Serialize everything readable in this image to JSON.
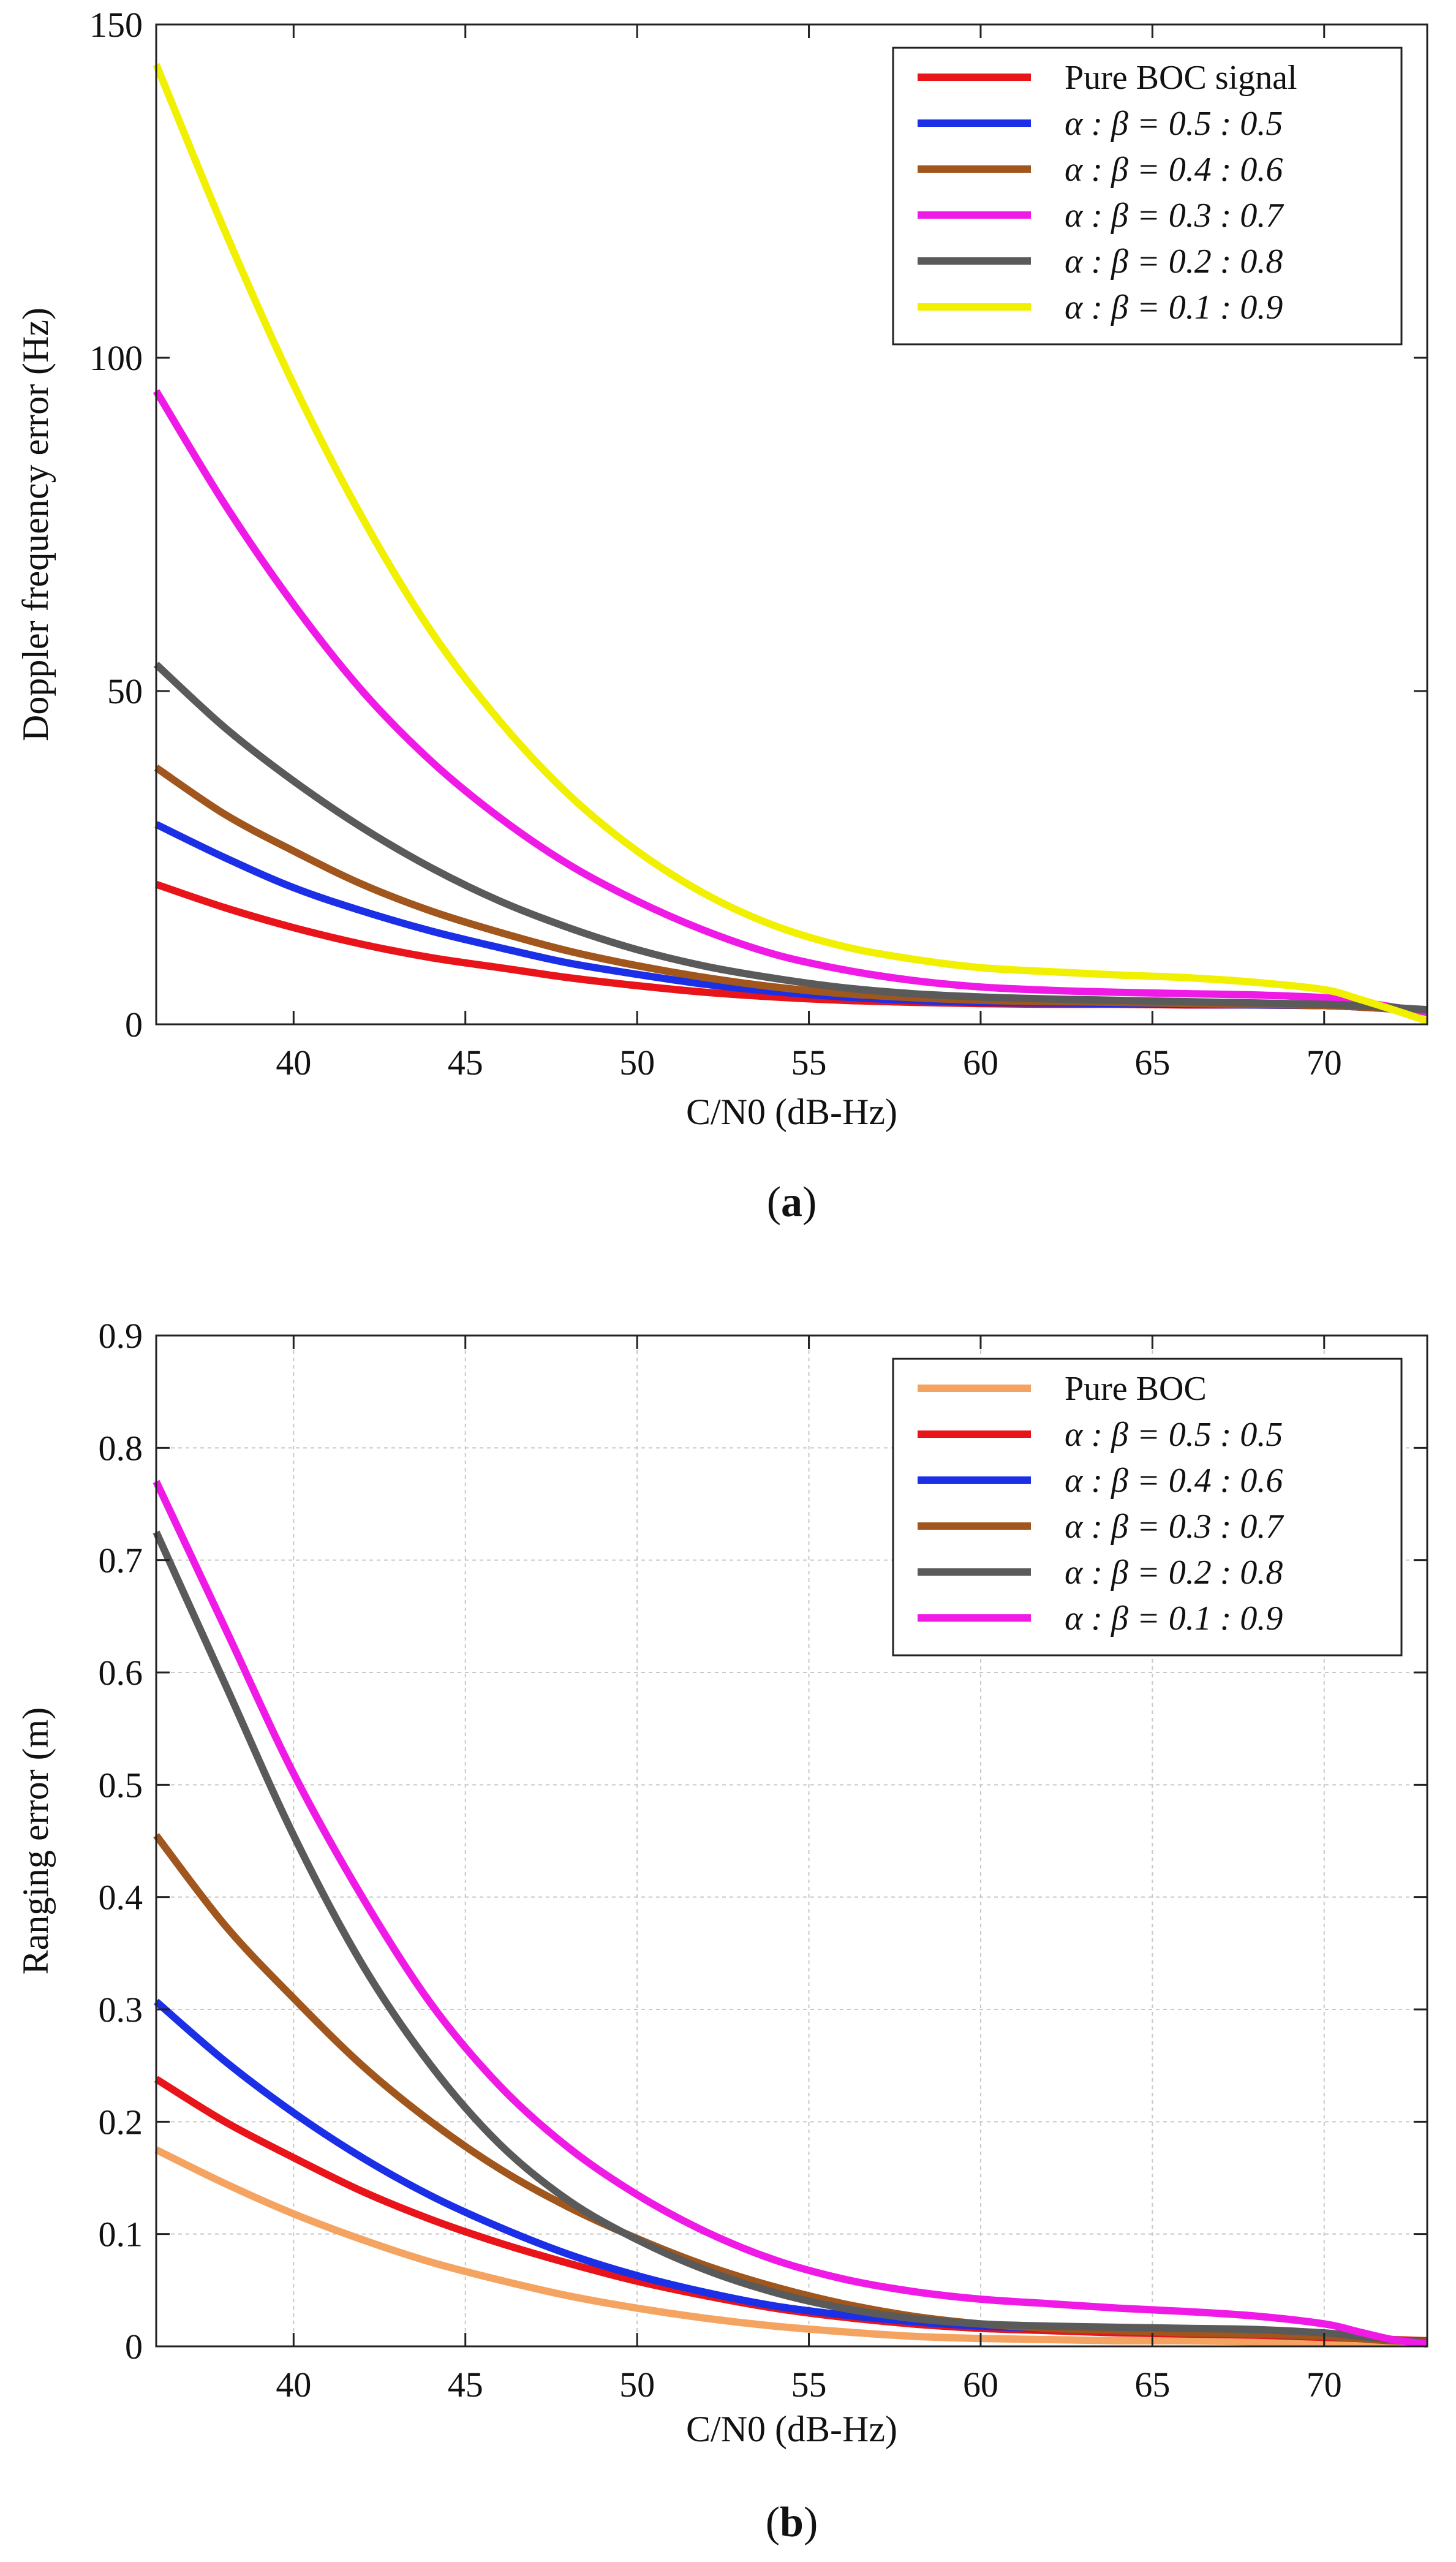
{
  "chart_data": [
    {
      "panel": "(a)",
      "panel_letter": "a",
      "type": "line",
      "xlabel": "C/N0  (dB-Hz)",
      "ylabel": "Doppler frequency error (Hz)",
      "xlim": [
        36,
        73
      ],
      "ylim": [
        0,
        150
      ],
      "xticks": [
        40,
        45,
        50,
        55,
        60,
        65,
        70
      ],
      "yticks": [
        0,
        50,
        100,
        150
      ],
      "grid": false,
      "legend_position": "top-right",
      "x": [
        36,
        38,
        40,
        42,
        44,
        46,
        48,
        50,
        52,
        54,
        56,
        58,
        60,
        62,
        64,
        66,
        68,
        70,
        71,
        72,
        73
      ],
      "series": [
        {
          "name": "Pure BOC signal",
          "color": "#e8141a",
          "values": [
            21,
            17.5,
            14.5,
            12,
            10,
            8.5,
            7,
            5.8,
            4.8,
            4.1,
            3.6,
            3.3,
            3.1,
            3.0,
            3.0,
            2.9,
            2.9,
            2.8,
            2.6,
            2.3,
            1.9
          ]
        },
        {
          "name": "α : β = 0.5 : 0.5",
          "color": "#1b2fe6",
          "values": [
            30,
            25,
            20.5,
            17,
            14,
            11.5,
            9.2,
            7.5,
            6.0,
            4.9,
            4.1,
            3.6,
            3.3,
            3.2,
            3.1,
            3.0,
            2.9,
            2.8,
            2.6,
            2.3,
            1.9
          ]
        },
        {
          "name": "α : β = 0.4 : 0.6",
          "color": "#a0561c",
          "values": [
            38.5,
            31.5,
            26,
            21,
            17,
            13.8,
            11,
            8.8,
            7,
            5.6,
            4.6,
            4.0,
            3.6,
            3.4,
            3.3,
            3.1,
            3.0,
            2.8,
            2.6,
            2.3,
            1.9
          ]
        },
        {
          "name": "α : β = 0.3 : 0.7",
          "color": "#f01ae6",
          "values": [
            95,
            78,
            63,
            50,
            39.5,
            31,
            24,
            18.5,
            14,
            10.5,
            8.2,
            6.6,
            5.6,
            5.1,
            4.8,
            4.6,
            4.4,
            4.0,
            3.4,
            2.6,
            1.8
          ]
        },
        {
          "name": "α : β = 0.2 : 0.8",
          "color": "#5a5a5a",
          "values": [
            54,
            44.5,
            36.5,
            29.5,
            23.5,
            18.5,
            14.5,
            11.2,
            8.7,
            6.9,
            5.5,
            4.6,
            4.1,
            3.8,
            3.6,
            3.4,
            3.2,
            3.0,
            2.8,
            2.5,
            2.2
          ]
        },
        {
          "name": "α : β = 0.1 : 0.9",
          "color": "#f0f000",
          "values": [
            144,
            119,
            96,
            76,
            59,
            45.5,
            34.5,
            26,
            19.5,
            14.8,
            11.7,
            9.8,
            8.5,
            7.9,
            7.4,
            7.0,
            6.3,
            5.2,
            3.8,
            2.2,
            0.5
          ]
        }
      ]
    },
    {
      "panel": "(b)",
      "panel_letter": "b",
      "type": "line",
      "xlabel": "C/N0  (dB-Hz)",
      "ylabel": "Ranging error (m)",
      "xlim": [
        36,
        73
      ],
      "ylim": [
        0,
        0.9
      ],
      "xticks": [
        40,
        45,
        50,
        55,
        60,
        65,
        70
      ],
      "yticks": [
        0,
        0.1,
        0.2,
        0.3,
        0.4,
        0.5,
        0.6,
        0.7,
        0.8,
        0.9
      ],
      "grid": true,
      "legend_position": "top-right",
      "x": [
        36,
        38,
        40,
        42,
        44,
        46,
        48,
        50,
        52,
        54,
        56,
        58,
        60,
        62,
        64,
        66,
        68,
        70,
        71,
        72,
        73
      ],
      "series": [
        {
          "name": "Pure BOC",
          "color": "#f4a460",
          "values": [
            0.175,
            0.145,
            0.118,
            0.095,
            0.075,
            0.059,
            0.045,
            0.034,
            0.025,
            0.018,
            0.013,
            0.009,
            0.007,
            0.006,
            0.005,
            0.005,
            0.004,
            0.004,
            0.004,
            0.004,
            0.004
          ]
        },
        {
          "name": "α : β = 0.5 : 0.5",
          "color": "#e8141a",
          "values": [
            0.238,
            0.2,
            0.168,
            0.138,
            0.113,
            0.092,
            0.074,
            0.058,
            0.045,
            0.034,
            0.026,
            0.02,
            0.016,
            0.014,
            0.012,
            0.011,
            0.01,
            0.008,
            0.007,
            0.006,
            0.005
          ]
        },
        {
          "name": "α : β = 0.4 : 0.6",
          "color": "#1b2fe6",
          "values": [
            0.307,
            0.254,
            0.208,
            0.168,
            0.134,
            0.106,
            0.082,
            0.063,
            0.048,
            0.036,
            0.028,
            0.022,
            0.018,
            0.016,
            0.014,
            0.013,
            0.011,
            0.009,
            0.007,
            0.005,
            0.004
          ]
        },
        {
          "name": "α : β = 0.3 : 0.7",
          "color": "#a0561c",
          "values": [
            0.455,
            0.375,
            0.31,
            0.25,
            0.2,
            0.158,
            0.124,
            0.096,
            0.072,
            0.053,
            0.038,
            0.027,
            0.02,
            0.016,
            0.014,
            0.012,
            0.011,
            0.009,
            0.007,
            0.005,
            0.004
          ]
        },
        {
          "name": "α : β = 0.2 : 0.8",
          "color": "#5a5a5a",
          "values": [
            0.725,
            0.59,
            0.455,
            0.34,
            0.25,
            0.18,
            0.13,
            0.095,
            0.068,
            0.048,
            0.034,
            0.025,
            0.02,
            0.018,
            0.017,
            0.016,
            0.015,
            0.012,
            0.009,
            0.006,
            0.003
          ]
        },
        {
          "name": "α : β = 0.1 : 0.9",
          "color": "#f01ae6",
          "values": [
            0.77,
            0.64,
            0.51,
            0.4,
            0.305,
            0.232,
            0.177,
            0.135,
            0.102,
            0.077,
            0.06,
            0.049,
            0.042,
            0.038,
            0.034,
            0.031,
            0.027,
            0.02,
            0.013,
            0.006,
            0.002
          ]
        }
      ]
    }
  ]
}
